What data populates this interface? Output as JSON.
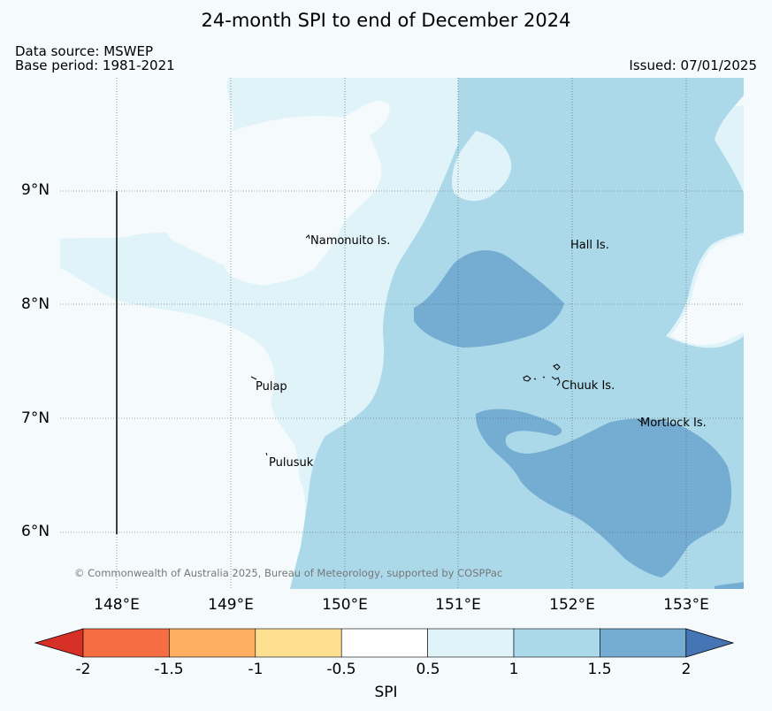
{
  "title": "24-month SPI to end of December 2024",
  "data_source": "Data source: MSWEP",
  "base_period": "Base period: 1981-2021",
  "issued": "Issued: 07/01/2025",
  "copyright": "© Commonwealth of Australia 2025, Bureau of Meteorology, supported by COSPPac",
  "lat_ticks": [
    "9°N",
    "8°N",
    "7°N",
    "6°N"
  ],
  "lon_ticks": [
    "148°E",
    "149°E",
    "150°E",
    "151°E",
    "152°E",
    "153°E"
  ],
  "places": {
    "namonuito": "Namonuito Is.",
    "hall": "Hall Is.",
    "pulap": "Pulap",
    "chuuk": "Chuuk Is.",
    "mortlock": "Mortlock Is.",
    "pulusuk": "Pulusuk"
  },
  "colorbar": {
    "title": "SPI",
    "labels": [
      "-2",
      "-1.5",
      "-1",
      "-0.5",
      "0.5",
      "1",
      "1.5",
      "2"
    ],
    "colors": [
      "#d73027",
      "#f46d43",
      "#fdae61",
      "#fee090",
      "#ffffff",
      "#e0f3f8",
      "#abd9e9",
      "#74add1",
      "#4575b4"
    ]
  }
}
